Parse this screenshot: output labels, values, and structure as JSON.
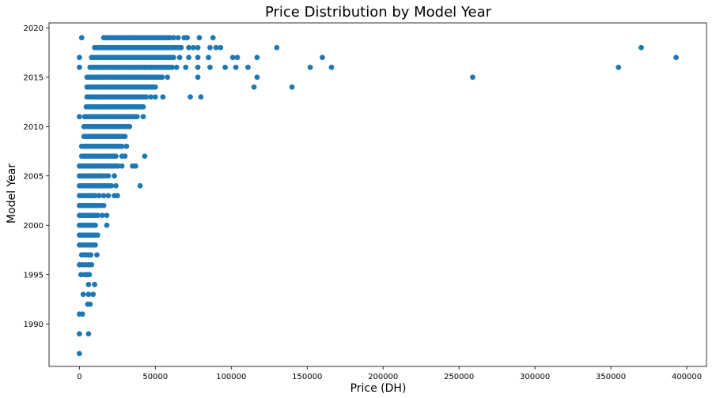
{
  "chart_data": {
    "type": "scatter",
    "title": "Price Distribution by Model Year",
    "xlabel": "Price (DH)",
    "ylabel": "Model Year",
    "xlim": [
      -20000,
      413000
    ],
    "ylim": [
      1985.7,
      2020.5
    ],
    "xticks": [
      0,
      50000,
      100000,
      150000,
      200000,
      250000,
      300000,
      350000,
      400000
    ],
    "yticks": [
      1990,
      1995,
      2000,
      2005,
      2010,
      2015,
      2020
    ],
    "grid": false,
    "legend": "none",
    "marker_color": "#1f77b4",
    "series": [
      {
        "bands": [
          {
            "year": 2019,
            "from": 16000,
            "to": 60000,
            "step": 1500
          },
          {
            "year": 2018,
            "from": 10000,
            "to": 68000,
            "step": 1500
          },
          {
            "year": 2017,
            "from": 8000,
            "to": 63000,
            "step": 1500
          },
          {
            "year": 2016,
            "from": 7000,
            "to": 61000,
            "step": 1500
          },
          {
            "year": 2015,
            "from": 5000,
            "to": 55000,
            "step": 1500
          },
          {
            "year": 2014,
            "from": 5000,
            "to": 50000,
            "step": 1500
          },
          {
            "year": 2013,
            "from": 5000,
            "to": 45000,
            "step": 1500
          },
          {
            "year": 2012,
            "from": 4500,
            "to": 43000,
            "step": 1500
          },
          {
            "year": 2011,
            "from": 3500,
            "to": 38000,
            "step": 1500
          },
          {
            "year": 2010,
            "from": 3000,
            "to": 33000,
            "step": 1500
          },
          {
            "year": 2009,
            "from": 3000,
            "to": 31000,
            "step": 1500
          },
          {
            "year": 2008,
            "from": 1500,
            "to": 27000,
            "step": 1500
          },
          {
            "year": 2007,
            "from": 1500,
            "to": 25000,
            "step": 1500
          },
          {
            "year": 2006,
            "from": 0,
            "to": 26000,
            "step": 1500
          },
          {
            "year": 2005,
            "from": 0,
            "to": 15000,
            "step": 1500
          },
          {
            "year": 2004,
            "from": 0,
            "to": 22000,
            "step": 1500
          },
          {
            "year": 2003,
            "from": 0,
            "to": 11000,
            "step": 1500
          },
          {
            "year": 2002,
            "from": 0,
            "to": 12000,
            "step": 1500
          },
          {
            "year": 2001,
            "from": 0,
            "to": 12000,
            "step": 1500
          },
          {
            "year": 2000,
            "from": 0,
            "to": 11000,
            "step": 1500
          },
          {
            "year": 1999,
            "from": 0,
            "to": 12000,
            "step": 1500
          },
          {
            "year": 1998,
            "from": 0,
            "to": 11000,
            "step": 1500
          },
          {
            "year": 1997,
            "from": 1500,
            "to": 8000,
            "step": 1500
          }
        ],
        "points": [
          [
            1500,
            2019
          ],
          [
            62000,
            2019
          ],
          [
            65000,
            2019
          ],
          [
            69000,
            2019
          ],
          [
            71000,
            2019
          ],
          [
            79000,
            2019
          ],
          [
            88000,
            2019
          ],
          [
            72000,
            2018
          ],
          [
            75000,
            2018
          ],
          [
            78000,
            2018
          ],
          [
            86000,
            2018
          ],
          [
            90000,
            2018
          ],
          [
            93000,
            2018
          ],
          [
            130000,
            2018
          ],
          [
            370000,
            2018
          ],
          [
            0,
            2017
          ],
          [
            66000,
            2017
          ],
          [
            72000,
            2017
          ],
          [
            78000,
            2017
          ],
          [
            85000,
            2017
          ],
          [
            101000,
            2017
          ],
          [
            104000,
            2017
          ],
          [
            117000,
            2017
          ],
          [
            160000,
            2017
          ],
          [
            393000,
            2017
          ],
          [
            0,
            2016
          ],
          [
            64000,
            2016
          ],
          [
            70000,
            2016
          ],
          [
            78000,
            2016
          ],
          [
            86000,
            2016
          ],
          [
            96000,
            2016
          ],
          [
            103000,
            2016
          ],
          [
            111000,
            2016
          ],
          [
            152000,
            2016
          ],
          [
            166000,
            2016
          ],
          [
            355000,
            2016
          ],
          [
            58000,
            2015
          ],
          [
            78000,
            2015
          ],
          [
            117000,
            2015
          ],
          [
            259000,
            2015
          ],
          [
            115000,
            2014
          ],
          [
            140000,
            2014
          ],
          [
            47000,
            2013
          ],
          [
            50000,
            2013
          ],
          [
            55000,
            2013
          ],
          [
            73000,
            2013
          ],
          [
            80000,
            2013
          ],
          [
            0,
            2011
          ],
          [
            42000,
            2011
          ],
          [
            28000,
            2008
          ],
          [
            31000,
            2008
          ],
          [
            28000,
            2007
          ],
          [
            30000,
            2007
          ],
          [
            43000,
            2007
          ],
          [
            28000,
            2006
          ],
          [
            35000,
            2006
          ],
          [
            37000,
            2006
          ],
          [
            17000,
            2005
          ],
          [
            19000,
            2005
          ],
          [
            23000,
            2005
          ],
          [
            24000,
            2004
          ],
          [
            40000,
            2004
          ],
          [
            13000,
            2003
          ],
          [
            16000,
            2003
          ],
          [
            19000,
            2003
          ],
          [
            23000,
            2003
          ],
          [
            25000,
            2003
          ],
          [
            14000,
            2002
          ],
          [
            16000,
            2002
          ],
          [
            15000,
            2001
          ],
          [
            18000,
            2001
          ],
          [
            18000,
            2000
          ],
          [
            11500,
            1997
          ],
          [
            0,
            1996
          ],
          [
            2000,
            1996
          ],
          [
            4000,
            1996
          ],
          [
            6000,
            1996
          ],
          [
            8000,
            1996
          ],
          [
            1000,
            1995
          ],
          [
            3500,
            1995
          ],
          [
            5000,
            1995
          ],
          [
            6500,
            1995
          ],
          [
            6000,
            1994
          ],
          [
            10000,
            1994
          ],
          [
            2500,
            1993
          ],
          [
            6000,
            1993
          ],
          [
            9000,
            1993
          ],
          [
            5500,
            1992
          ],
          [
            7000,
            1992
          ],
          [
            0,
            1991
          ],
          [
            2000,
            1991
          ],
          [
            0,
            1989
          ],
          [
            6000,
            1989
          ],
          [
            0,
            1987
          ]
        ]
      }
    ]
  }
}
